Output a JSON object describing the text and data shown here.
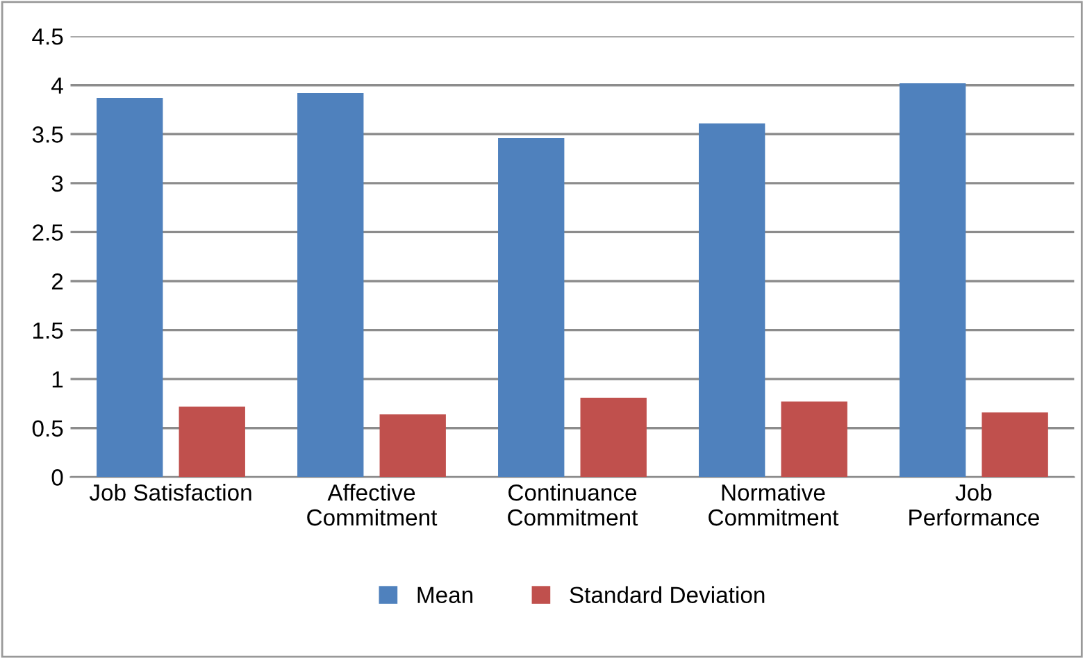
{
  "chart_data": {
    "type": "bar",
    "categories": [
      "Job Satisfaction",
      "Affective\nCommitment",
      "Continuance\nCommitment",
      "Normative\nCommitment",
      "Job\nPerformance"
    ],
    "series": [
      {
        "name": "Mean",
        "color": "#4f81bd",
        "values": [
          3.87,
          3.92,
          3.46,
          3.61,
          4.02
        ]
      },
      {
        "name": "Standard Deviation",
        "color": "#c0504d",
        "values": [
          0.72,
          0.64,
          0.81,
          0.77,
          0.66
        ]
      }
    ],
    "ylim": [
      0,
      4.5
    ],
    "yticks": [
      0,
      0.5,
      1,
      1.5,
      2,
      2.5,
      3,
      3.5,
      4,
      4.5
    ],
    "grid": "y",
    "legend": "bottom"
  }
}
